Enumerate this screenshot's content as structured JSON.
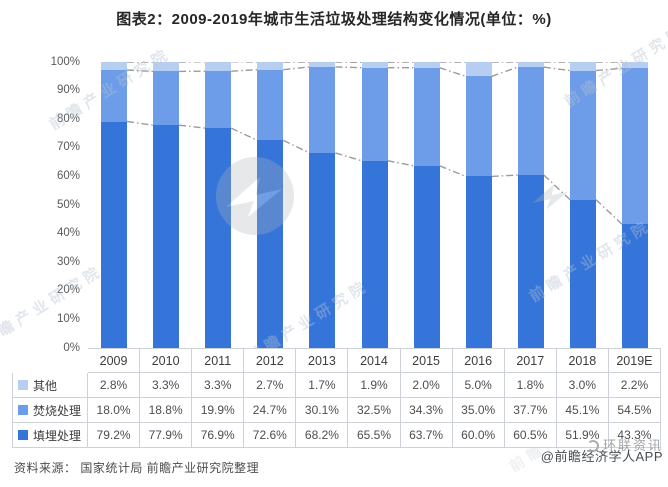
{
  "title": "图表2：2009-2019年城市生活垃圾处理结构变化情况(单位：%)",
  "source_note": "资料来源：  国家统计局 前瞻产业研究院整理",
  "footer": {
    "watermark_brand": "环联资讯",
    "app_credit": "@前瞻经济学人APP"
  },
  "watermark": {
    "diagonal_text": "前瞻产业研究院",
    "logo_name": "qianzhan-circle-logo"
  },
  "colors": {
    "landfill": "#3575d9",
    "incineration": "#6d9ce8",
    "other": "#b5cef1",
    "series_line": "#9b9b9b",
    "table_border": "#cdd2d8",
    "axis_text": "#595959"
  },
  "chart_data": {
    "type": "bar",
    "stacked": true,
    "unit": "%",
    "title": "图表2：2009-2019年城市生活垃圾处理结构变化情况(单位：%)",
    "categories": [
      "2009",
      "2010",
      "2011",
      "2012",
      "2013",
      "2014",
      "2015",
      "2016",
      "2017",
      "2018",
      "2019E"
    ],
    "series": [
      {
        "name": "填埋处理",
        "color": "#3575d9",
        "values": [
          79.2,
          77.9,
          76.9,
          72.6,
          68.2,
          65.5,
          63.7,
          60.0,
          60.5,
          51.9,
          43.3
        ]
      },
      {
        "name": "焚烧处理",
        "color": "#6d9ce8",
        "values": [
          18.0,
          18.8,
          19.9,
          24.7,
          30.1,
          32.5,
          34.3,
          35.0,
          37.7,
          45.1,
          54.5
        ]
      },
      {
        "name": "其他",
        "color": "#b5cef1",
        "values": [
          2.8,
          3.3,
          3.3,
          2.7,
          1.7,
          1.9,
          2.0,
          5.0,
          1.8,
          3.0,
          2.2
        ]
      }
    ],
    "ylim": [
      0,
      100
    ],
    "y_ticks": [
      "0%",
      "10%",
      "20%",
      "30%",
      "40%",
      "50%",
      "60%",
      "70%",
      "80%",
      "90%",
      "100%"
    ],
    "grid": false,
    "series_lines": true,
    "legend_position": "data-table-left"
  },
  "table": {
    "corner": "",
    "header": [
      "2009",
      "2010",
      "2011",
      "2012",
      "2013",
      "2014",
      "2015",
      "2016",
      "2017",
      "2018",
      "2019E"
    ],
    "rows": [
      {
        "label": "其他",
        "color": "#b5cef1",
        "cells": [
          "2.8%",
          "3.3%",
          "3.3%",
          "2.7%",
          "1.7%",
          "1.9%",
          "2.0%",
          "5.0%",
          "1.8%",
          "3.0%",
          "2.2%"
        ]
      },
      {
        "label": "焚烧处理",
        "color": "#6d9ce8",
        "cells": [
          "18.0%",
          "18.8%",
          "19.9%",
          "24.7%",
          "30.1%",
          "32.5%",
          "34.3%",
          "35.0%",
          "37.7%",
          "45.1%",
          "54.5%"
        ]
      },
      {
        "label": "填埋处理",
        "color": "#3575d9",
        "cells": [
          "79.2%",
          "77.9%",
          "76.9%",
          "72.6%",
          "68.2%",
          "65.5%",
          "63.7%",
          "60.0%",
          "60.5%",
          "51.9%",
          "43.3%"
        ]
      }
    ]
  }
}
